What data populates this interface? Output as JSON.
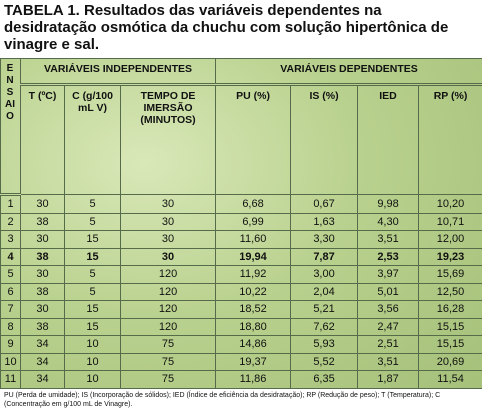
{
  "title": "TABELA 1. Resultados das variáveis dependentes na desidratação osmótica da chuchu com solução hipertônica de vinagre e sal.",
  "table": {
    "ensaio_header": "ENSAIO",
    "group_headers": [
      "VARIÁVEIS INDEPENDENTES",
      "VARIÁVEIS DEPENDENTES"
    ],
    "column_headers": [
      "T (ºC)",
      "C (g/100 mL V)",
      "TEMPO DE IMERSÃO (MINUTOS)",
      "PU (%)",
      "IS (%)",
      "IED",
      "RP (%)"
    ],
    "bold_row": 3,
    "rows": [
      [
        "1",
        "30",
        "5",
        "30",
        "6,68",
        "0,67",
        "9,98",
        "10,20"
      ],
      [
        "2",
        "38",
        "5",
        "30",
        "6,99",
        "1,63",
        "4,30",
        "10,71"
      ],
      [
        "3",
        "30",
        "15",
        "30",
        "11,60",
        "3,30",
        "3,51",
        "12,00"
      ],
      [
        "4",
        "38",
        "15",
        "30",
        "19,94",
        "7,87",
        "2,53",
        "19,23"
      ],
      [
        "5",
        "30",
        "5",
        "120",
        "11,92",
        "3,00",
        "3,97",
        "15,69"
      ],
      [
        "6",
        "38",
        "5",
        "120",
        "10,22",
        "2,04",
        "5,01",
        "12,50"
      ],
      [
        "7",
        "30",
        "15",
        "120",
        "18,52",
        "5,21",
        "3,56",
        "16,28"
      ],
      [
        "8",
        "38",
        "15",
        "120",
        "18,80",
        "7,62",
        "2,47",
        "15,15"
      ],
      [
        "9",
        "34",
        "10",
        "75",
        "14,86",
        "5,93",
        "2,51",
        "15,15"
      ],
      [
        "10",
        "34",
        "10",
        "75",
        "19,37",
        "5,52",
        "3,51",
        "20,69"
      ],
      [
        "11",
        "34",
        "10",
        "75",
        "11,86",
        "6,35",
        "1,87",
        "11,54"
      ]
    ]
  },
  "footnote": "PU (Perda de umidade); IS (Incorporação de sólidos); IED (Índice de eficiência da desidratação); RP (Redução de peso); T (Temperatura); C (Concentração em g/100 mL de Vinagre)."
}
